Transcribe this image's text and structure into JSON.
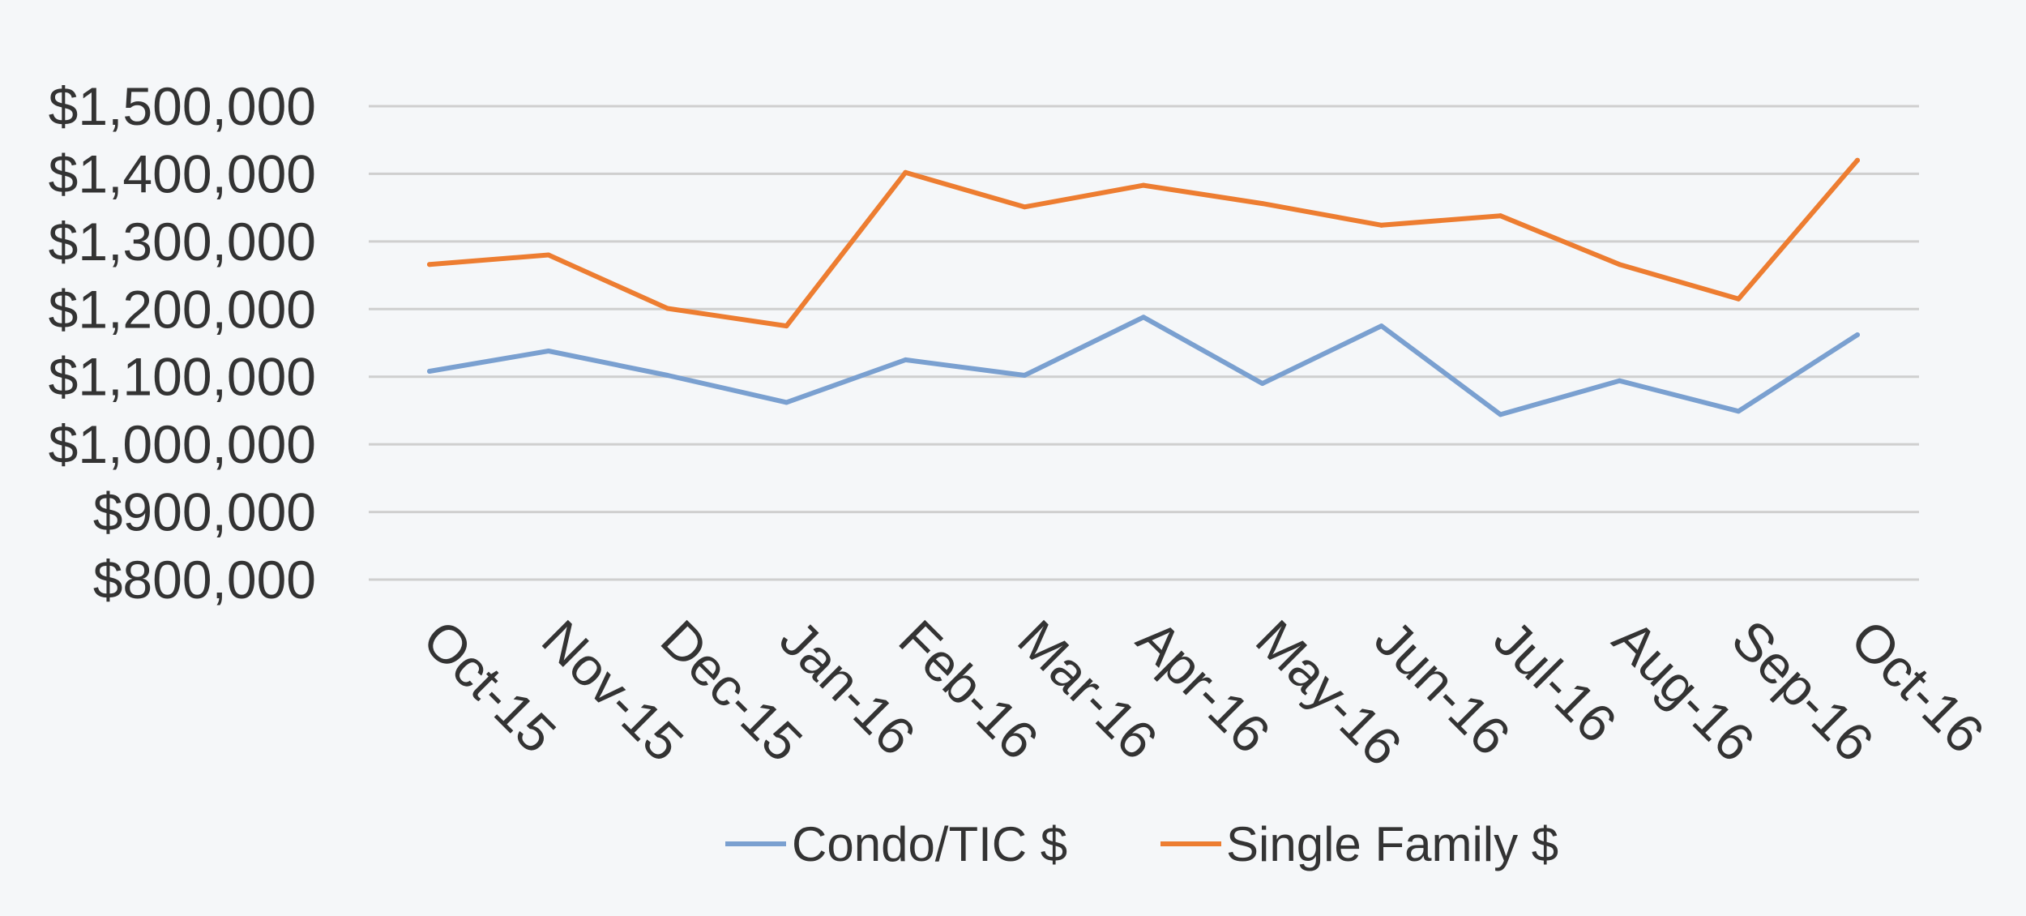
{
  "chart_data": {
    "type": "line",
    "categories": [
      "Oct-15",
      "Nov-15",
      "Dec-15",
      "Jan-16",
      "Feb-16",
      "Mar-16",
      "Apr-16",
      "May-16",
      "Jun-16",
      "Jul-16",
      "Aug-16",
      "Sep-16",
      "Oct-16"
    ],
    "series": [
      {
        "name": "Condo/TIC $",
        "color": "#7aa0d0",
        "values": [
          1108000,
          1138000,
          1102000,
          1062000,
          1125000,
          1102000,
          1188000,
          1090000,
          1175000,
          1044000,
          1094000,
          1049000,
          1162000
        ]
      },
      {
        "name": "Single Family $",
        "color": "#ed7d31",
        "values": [
          1266000,
          1280000,
          1201000,
          1175000,
          1402000,
          1351000,
          1383000,
          1356000,
          1324000,
          1338000,
          1266000,
          1215000,
          1420000
        ]
      }
    ],
    "y_ticks": [
      "$800,000",
      "$900,000",
      "$1,000,000",
      "$1,100,000",
      "$1,200,000",
      "$1,300,000",
      "$1,400,000",
      "$1,500,000"
    ],
    "ylim": [
      800000,
      1500000
    ],
    "title": "",
    "xlabel": "",
    "ylabel": "",
    "grid": true,
    "legend_position": "bottom"
  }
}
